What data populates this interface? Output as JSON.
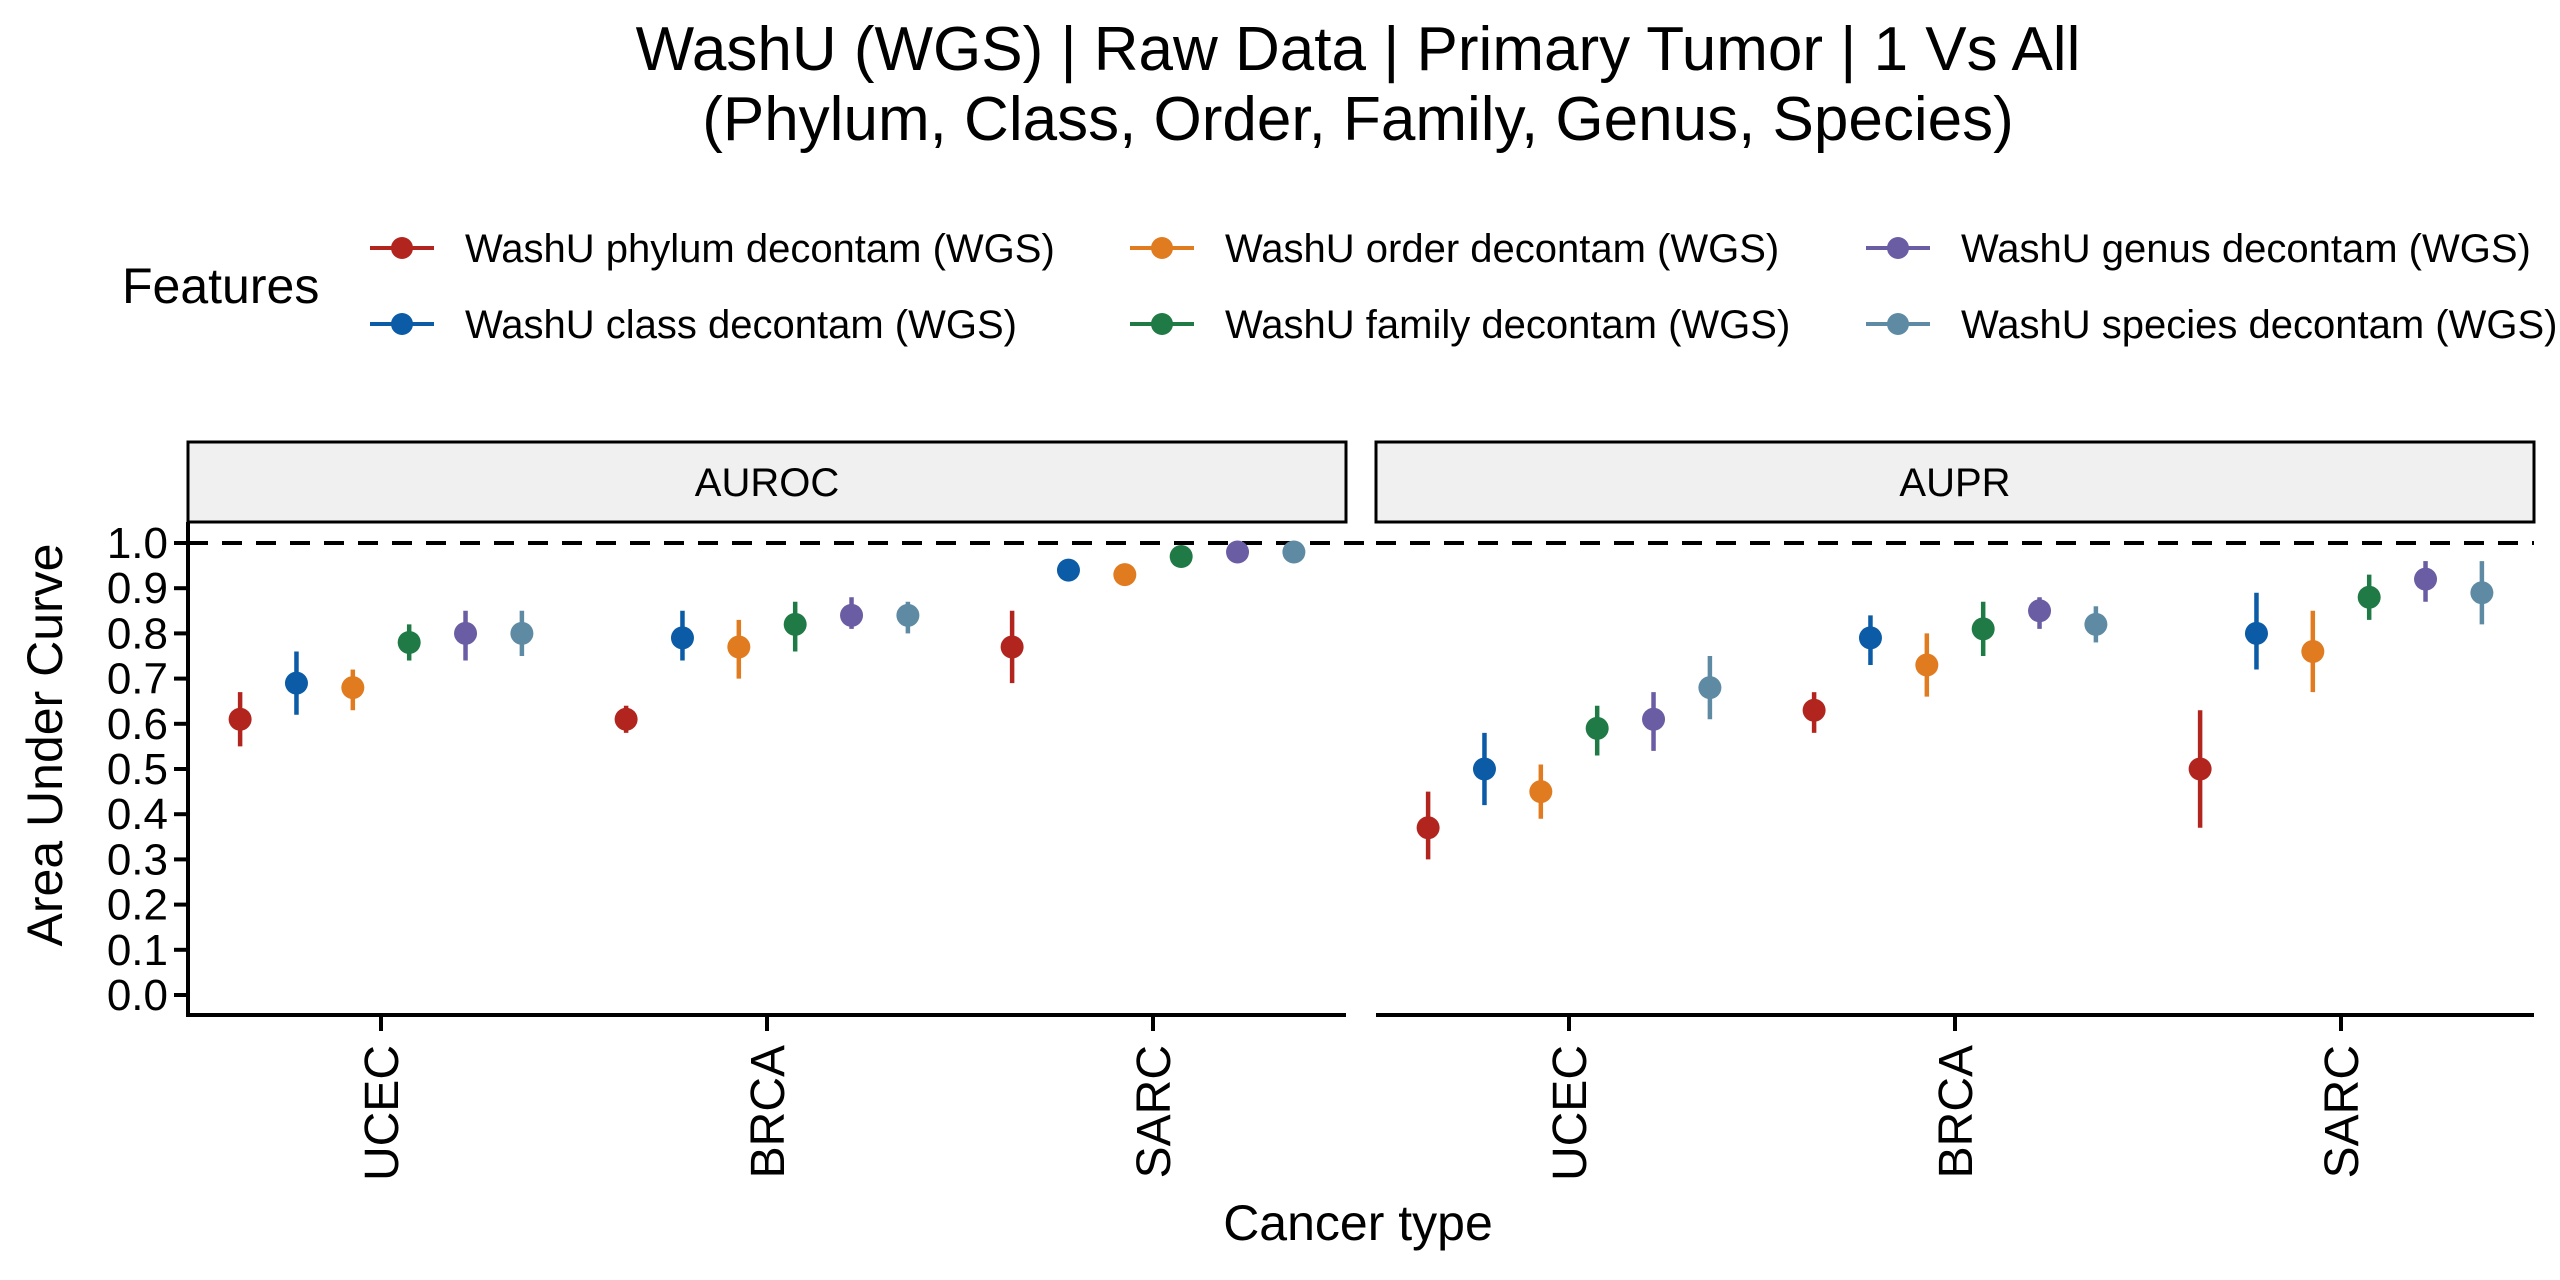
{
  "chart_data": {
    "type": "scatter",
    "title": "WashU (WGS) | Raw Data | Primary Tumor | 1 Vs All",
    "subtitle": "(Phylum, Class, Order, Family, Genus, Species)",
    "xlabel": "Cancer type",
    "ylabel": "Area Under Curve",
    "ylim": [
      0.0,
      1.0
    ],
    "yticks": [
      "0.0",
      "0.1",
      "0.2",
      "0.3",
      "0.4",
      "0.5",
      "0.6",
      "0.7",
      "0.8",
      "0.9",
      "1.0"
    ],
    "reference_line": 1.0,
    "grid": false,
    "legend_title": "Features",
    "legend_position": "top",
    "categories": [
      "UCEC",
      "BRCA",
      "SARC"
    ],
    "panels": [
      {
        "name": "AUROC",
        "series": [
          {
            "name": "WashU phylum decontam (WGS)",
            "color": "#B2251E",
            "values": [
              0.61,
              0.61,
              0.77
            ],
            "lower": [
              0.55,
              0.58,
              0.69
            ],
            "upper": [
              0.67,
              0.64,
              0.85
            ]
          },
          {
            "name": "WashU class decontam (WGS)",
            "color": "#0B5BA6",
            "values": [
              0.69,
              0.79,
              0.94
            ],
            "lower": [
              0.62,
              0.74,
              0.94
            ],
            "upper": [
              0.76,
              0.85,
              0.94
            ]
          },
          {
            "name": "WashU order decontam (WGS)",
            "color": "#E07B20",
            "values": [
              0.68,
              0.77,
              0.93
            ],
            "lower": [
              0.63,
              0.7,
              0.93
            ],
            "upper": [
              0.72,
              0.83,
              0.93
            ]
          },
          {
            "name": "WashU family decontam (WGS)",
            "color": "#1F7A45",
            "values": [
              0.78,
              0.82,
              0.97
            ],
            "lower": [
              0.74,
              0.76,
              0.97
            ],
            "upper": [
              0.82,
              0.87,
              0.97
            ]
          },
          {
            "name": "WashU genus decontam (WGS)",
            "color": "#6B5DA3",
            "values": [
              0.8,
              0.84,
              0.98
            ],
            "lower": [
              0.74,
              0.81,
              0.98
            ],
            "upper": [
              0.85,
              0.88,
              0.98
            ]
          },
          {
            "name": "WashU species decontam (WGS)",
            "color": "#5E8BA3",
            "values": [
              0.8,
              0.84,
              0.98
            ],
            "lower": [
              0.75,
              0.8,
              0.98
            ],
            "upper": [
              0.85,
              0.87,
              0.98
            ]
          }
        ]
      },
      {
        "name": "AUPR",
        "series": [
          {
            "name": "WashU phylum decontam (WGS)",
            "color": "#B2251E",
            "values": [
              0.37,
              0.63,
              0.5
            ],
            "lower": [
              0.3,
              0.58,
              0.37
            ],
            "upper": [
              0.45,
              0.67,
              0.63
            ]
          },
          {
            "name": "WashU class decontam (WGS)",
            "color": "#0B5BA6",
            "values": [
              0.5,
              0.79,
              0.8
            ],
            "lower": [
              0.42,
              0.73,
              0.72
            ],
            "upper": [
              0.58,
              0.84,
              0.89
            ]
          },
          {
            "name": "WashU order decontam (WGS)",
            "color": "#E07B20",
            "values": [
              0.45,
              0.73,
              0.76
            ],
            "lower": [
              0.39,
              0.66,
              0.67
            ],
            "upper": [
              0.51,
              0.8,
              0.85
            ]
          },
          {
            "name": "WashU family decontam (WGS)",
            "color": "#1F7A45",
            "values": [
              0.59,
              0.81,
              0.88
            ],
            "lower": [
              0.53,
              0.75,
              0.83
            ],
            "upper": [
              0.64,
              0.87,
              0.93
            ]
          },
          {
            "name": "WashU genus decontam (WGS)",
            "color": "#6B5DA3",
            "values": [
              0.61,
              0.85,
              0.92
            ],
            "lower": [
              0.54,
              0.81,
              0.87
            ],
            "upper": [
              0.67,
              0.88,
              0.96
            ]
          },
          {
            "name": "WashU species decontam (WGS)",
            "color": "#5E8BA3",
            "values": [
              0.68,
              0.82,
              0.89
            ],
            "lower": [
              0.61,
              0.78,
              0.82
            ],
            "upper": [
              0.75,
              0.86,
              0.96
            ]
          }
        ]
      }
    ]
  }
}
